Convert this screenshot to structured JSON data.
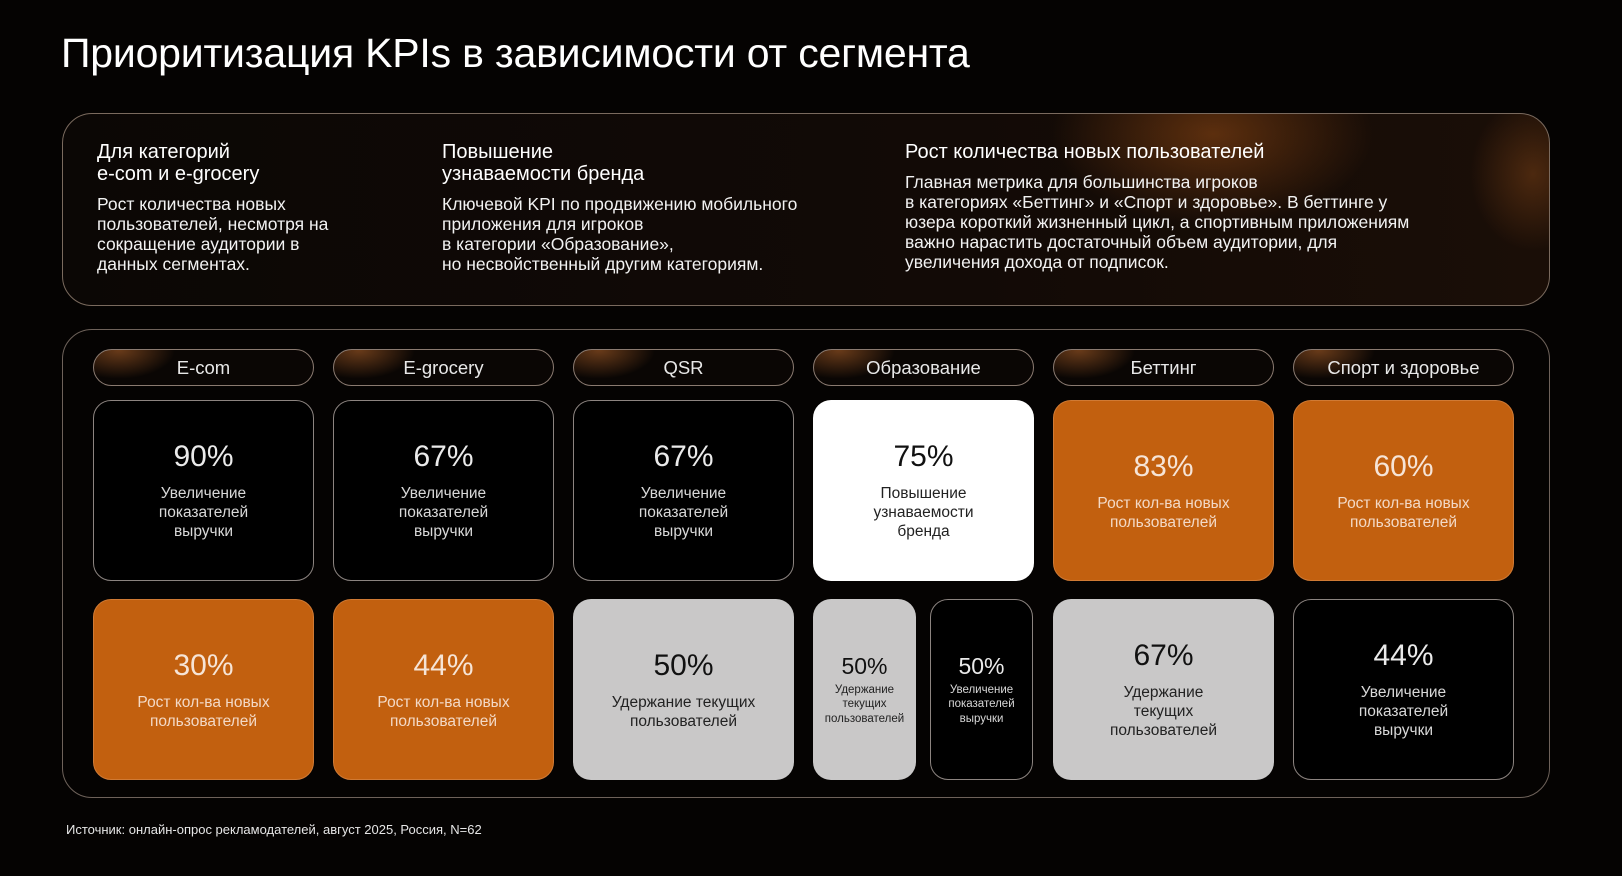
{
  "title": "Приоритизация KPIs в зависимости от сегмента",
  "top_columns": [
    {
      "heading": "Для категорий\ne-com и e-grocery",
      "text": "Рост количества новых\nпользователей, несмотря на\nсокращение аудитории в\nданных сегментах."
    },
    {
      "heading": "Повышение\nузнаваемости бренда",
      "text": "Ключевой KPI по продвижению мобильного\nприложения для игроков\nв категории «Образование»,\nно несвойственный другим категориям."
    },
    {
      "heading": "Рост количества новых пользователей",
      "text": "Главная метрика для большинства игроков\nв категориях «Беттинг» и «Спорт и здоровье». В беттинге у\nюзера короткий жизненный цикл, а спортивным приложениям\nважно нарастить достаточный объем аудитории, для\nувеличения дохода от подписок."
    }
  ],
  "segments": [
    {
      "name": "E-com",
      "top": {
        "value": "90%",
        "label": "Увеличение\nпоказателей\nвыручки",
        "style": "dark"
      },
      "bottom": [
        {
          "value": "30%",
          "label": "Рост кол-ва новых\nпользователей",
          "style": "orange"
        }
      ]
    },
    {
      "name": "E-grocery",
      "top": {
        "value": "67%",
        "label": "Увеличение\nпоказателей\nвыручки",
        "style": "dark"
      },
      "bottom": [
        {
          "value": "44%",
          "label": "Рост кол-ва новых\nпользователей",
          "style": "orange"
        }
      ]
    },
    {
      "name": "QSR",
      "top": {
        "value": "67%",
        "label": "Увеличение\nпоказателей\nвыручки",
        "style": "dark"
      },
      "bottom": [
        {
          "value": "50%",
          "label": "Удержание текущих\nпользователей",
          "style": "gray"
        }
      ]
    },
    {
      "name": "Образование",
      "top": {
        "value": "75%",
        "label": "Повышение\nузнаваемости\nбренда",
        "style": "white"
      },
      "bottom": [
        {
          "value": "50%",
          "label": "Удержание\nтекущих\nпользователей",
          "style": "gray"
        },
        {
          "value": "50%",
          "label": "Увеличение\nпоказателей\nвыручки",
          "style": "dark"
        }
      ]
    },
    {
      "name": "Беттинг",
      "top": {
        "value": "83%",
        "label": "Рост кол-ва новых\nпользователей",
        "style": "orange"
      },
      "bottom": [
        {
          "value": "67%",
          "label": "Удержание\nтекущих\nпользователей",
          "style": "gray"
        }
      ]
    },
    {
      "name": "Спорт и здоровье",
      "top": {
        "value": "60%",
        "label": "Рост кол-ва новых\nпользователей",
        "style": "orange"
      },
      "bottom": [
        {
          "value": "44%",
          "label": "Увеличение\nпоказателей\nвыручки",
          "style": "dark"
        }
      ]
    }
  ],
  "source": "Источник: онлайн-опрос рекламодателей, август 2025, Россия, N=62",
  "colors": {
    "background": "#050302",
    "orange": "#c2600f",
    "gray": "#c9c8c8",
    "white": "#ffffff"
  }
}
